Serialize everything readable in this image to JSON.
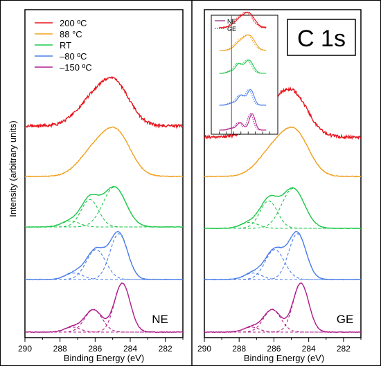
{
  "chart_data": [
    {
      "type": "line",
      "panel_label": "NE",
      "ylabel": "Intensity (arbitrary units)",
      "xlabel": "Binding Energy (eV)",
      "xlim": [
        290,
        281
      ],
      "xticks": [
        "290",
        "288",
        "286",
        "284",
        "282"
      ],
      "x_reversed": true,
      "y_ticks": "none",
      "series": [
        {
          "name": "200 ºC",
          "color": "#e8141c",
          "components": []
        },
        {
          "name": "88 °C",
          "color": "#f0a01e",
          "components": []
        },
        {
          "name": "RT",
          "color": "#1ec84b",
          "components": [
            {
              "center": 286.3,
              "height": 0.52
            },
            {
              "center": 284.9,
              "height": 0.78
            },
            {
              "center": 287.3,
              "height": 0.14
            }
          ]
        },
        {
          "name": "–80 ºC",
          "color": "#4a7ee8",
          "components": [
            {
              "center": 285.9,
              "height": 0.55
            },
            {
              "center": 284.6,
              "height": 0.9
            },
            {
              "center": 287.2,
              "height": 0.12
            }
          ]
        },
        {
          "name": "–150 ºC",
          "color": "#b01e8c",
          "components": [
            {
              "center": 286.1,
              "height": 0.42
            },
            {
              "center": 284.45,
              "height": 0.96
            },
            {
              "center": 287.3,
              "height": 0.1
            }
          ]
        }
      ],
      "legend": "top-left"
    },
    {
      "type": "line",
      "panel_label": "GE",
      "title": "C 1s",
      "xlabel": "Binding Energy (eV)",
      "xlim": [
        290,
        281
      ],
      "xticks": [
        "290",
        "288",
        "286",
        "284",
        "282"
      ],
      "x_reversed": true,
      "series": [
        {
          "name": "200 ºC",
          "color": "#e8141c"
        },
        {
          "name": "88 °C",
          "color": "#f0a01e"
        },
        {
          "name": "RT",
          "color": "#1ec84b"
        },
        {
          "name": "–80 ºC",
          "color": "#4a7ee8"
        },
        {
          "name": "–150 ºC",
          "color": "#b01e8c"
        }
      ],
      "inset": {
        "legend": [
          {
            "name": "NE",
            "style": "solid"
          },
          {
            "name": "GE",
            "style": "dotted"
          }
        ],
        "reference_line": 287.3
      }
    }
  ]
}
